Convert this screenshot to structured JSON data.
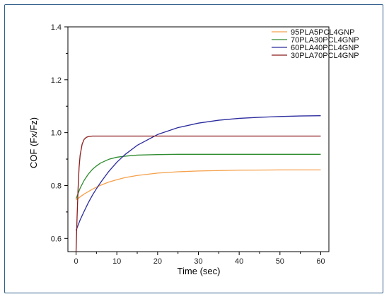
{
  "chart_data": {
    "type": "line",
    "title": "",
    "xlabel": "Time (sec)",
    "ylabel": "COF (Fx/Fz)",
    "xlim": [
      -2,
      62
    ],
    "ylim": [
      0.55,
      1.4
    ],
    "xticks": [
      0,
      10,
      20,
      30,
      40,
      50,
      60
    ],
    "xtick_labels": [
      "0",
      "10",
      "20",
      "30",
      "40",
      "50",
      "60"
    ],
    "yticks": [
      0.6,
      0.8,
      1.0,
      1.2,
      1.4
    ],
    "ytick_labels": [
      "0.6",
      "0.8",
      "1.0",
      "1.2",
      "1.4"
    ],
    "grid": false,
    "legend_position": "top-right",
    "series": [
      {
        "name": "95PLA5PCL4GNP",
        "color": "#f5a04a",
        "x": [
          0,
          1,
          2,
          3,
          4,
          5,
          6,
          8,
          10,
          12,
          15,
          20,
          25,
          30,
          40,
          50,
          60
        ],
        "y": [
          0.745,
          0.757,
          0.768,
          0.777,
          0.786,
          0.794,
          0.801,
          0.813,
          0.822,
          0.83,
          0.838,
          0.847,
          0.852,
          0.855,
          0.858,
          0.859,
          0.859
        ]
      },
      {
        "name": "70PLA30PCL4GNP",
        "color": "#2e8b2e",
        "x": [
          0,
          1,
          2,
          3,
          4,
          5,
          6,
          8,
          10,
          12,
          15,
          20,
          25,
          30,
          40,
          50,
          60
        ],
        "y": [
          0.75,
          0.79,
          0.82,
          0.843,
          0.861,
          0.874,
          0.885,
          0.899,
          0.907,
          0.911,
          0.915,
          0.917,
          0.918,
          0.918,
          0.918,
          0.918,
          0.918
        ]
      },
      {
        "name": "60PLA40PCL4GNP",
        "color": "#2b2b9e",
        "x": [
          0,
          1,
          2,
          3,
          4,
          5,
          6,
          8,
          10,
          12,
          15,
          20,
          25,
          30,
          35,
          40,
          45,
          50,
          55,
          60
        ],
        "y": [
          0.63,
          0.67,
          0.703,
          0.735,
          0.763,
          0.788,
          0.811,
          0.853,
          0.888,
          0.917,
          0.952,
          0.993,
          1.019,
          1.036,
          1.047,
          1.054,
          1.058,
          1.061,
          1.063,
          1.064
        ]
      },
      {
        "name": "30PLA70PCL4GNP",
        "color": "#8b1a1a",
        "x": [
          0,
          0.25,
          0.5,
          0.75,
          1,
          1.5,
          2,
          2.5,
          3,
          3.5,
          4,
          5,
          6,
          10,
          20,
          30,
          40,
          50,
          60
        ],
        "y": [
          0.55,
          0.68,
          0.79,
          0.87,
          0.915,
          0.957,
          0.975,
          0.982,
          0.985,
          0.986,
          0.987,
          0.987,
          0.987,
          0.987,
          0.987,
          0.987,
          0.987,
          0.987,
          0.987
        ]
      }
    ]
  }
}
